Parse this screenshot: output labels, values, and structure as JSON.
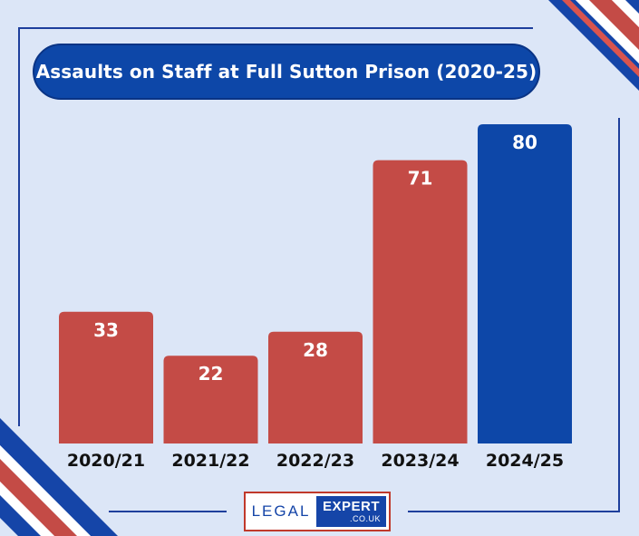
{
  "title": "Assaults on Staff at Full Sutton Prison (2020-25)",
  "logo": {
    "left_text": "LEGAL",
    "right_text": "EXPERT",
    "sub_text": ".CO.UK"
  },
  "colors": {
    "background": "#dce6f7",
    "bar_default": "#c44b46",
    "bar_highlight": "#0d47a8",
    "title_bg": "#0d47a8"
  },
  "chart_data": {
    "type": "bar",
    "categories": [
      "2020/21",
      "2021/22",
      "2022/23",
      "2023/24",
      "2024/25"
    ],
    "values": [
      33,
      22,
      28,
      71,
      80
    ],
    "highlight_index": 4,
    "title": "Assaults on Staff at Full Sutton Prison (2020-25)",
    "xlabel": "",
    "ylabel": "",
    "ylim": [
      0,
      80
    ],
    "grid": false,
    "data_labels": true
  }
}
